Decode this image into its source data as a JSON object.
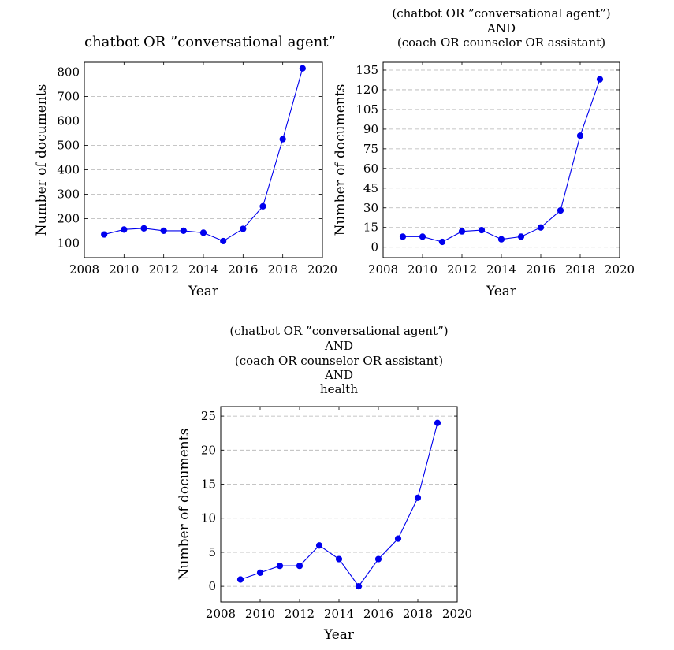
{
  "chart_data": [
    {
      "type": "line",
      "title_lines": [
        "chatbot OR ”conversational agent”"
      ],
      "xlabel": "Year",
      "ylabel": "Number of documents",
      "xlim": [
        2008,
        2020
      ],
      "ylim": [
        40,
        840
      ],
      "xticks": [
        2008,
        2010,
        2012,
        2014,
        2016,
        2018,
        2020
      ],
      "yticks": [
        100,
        200,
        300,
        400,
        500,
        600,
        700,
        800
      ],
      "grid": "horizontal-dashed",
      "color": "#0000ee",
      "series": [
        {
          "x": [
            2009,
            2010,
            2011,
            2012,
            2013,
            2014,
            2015,
            2016,
            2017,
            2018,
            2019
          ],
          "y": [
            135,
            155,
            160,
            150,
            150,
            142,
            108,
            158,
            250,
            525,
            815
          ]
        }
      ]
    },
    {
      "type": "line",
      "title_lines": [
        "(chatbot OR ”conversational agent”)",
        "AND",
        "(coach OR counselor OR assistant)"
      ],
      "xlabel": "Year",
      "ylabel": "Number of documents",
      "xlim": [
        2008,
        2020
      ],
      "ylim": [
        -8,
        141
      ],
      "xticks": [
        2008,
        2010,
        2012,
        2014,
        2016,
        2018,
        2020
      ],
      "yticks": [
        0,
        15,
        30,
        45,
        60,
        75,
        90,
        105,
        120,
        135
      ],
      "grid": "horizontal-dashed",
      "color": "#0000ee",
      "series": [
        {
          "x": [
            2009,
            2010,
            2011,
            2012,
            2013,
            2014,
            2015,
            2016,
            2017,
            2018,
            2019
          ],
          "y": [
            8,
            8,
            4,
            12,
            13,
            6,
            8,
            15,
            28,
            85,
            128
          ]
        }
      ]
    },
    {
      "type": "line",
      "title_lines": [
        "(chatbot OR ”conversational agent”)",
        "AND",
        "(coach OR counselor OR assistant)",
        "AND",
        "health"
      ],
      "xlabel": "Year",
      "ylabel": "Number of documents",
      "xlim": [
        2008,
        2020
      ],
      "ylim": [
        -2.3,
        26.4
      ],
      "xticks": [
        2008,
        2010,
        2012,
        2014,
        2016,
        2018,
        2020
      ],
      "yticks": [
        0,
        5,
        10,
        15,
        20,
        25
      ],
      "grid": "horizontal-dashed",
      "color": "#0000ee",
      "series": [
        {
          "x": [
            2009,
            2010,
            2011,
            2012,
            2013,
            2014,
            2015,
            2016,
            2017,
            2018,
            2019
          ],
          "y": [
            1,
            2,
            3,
            3,
            6,
            4,
            0,
            4,
            7,
            13,
            24
          ]
        }
      ]
    }
  ]
}
